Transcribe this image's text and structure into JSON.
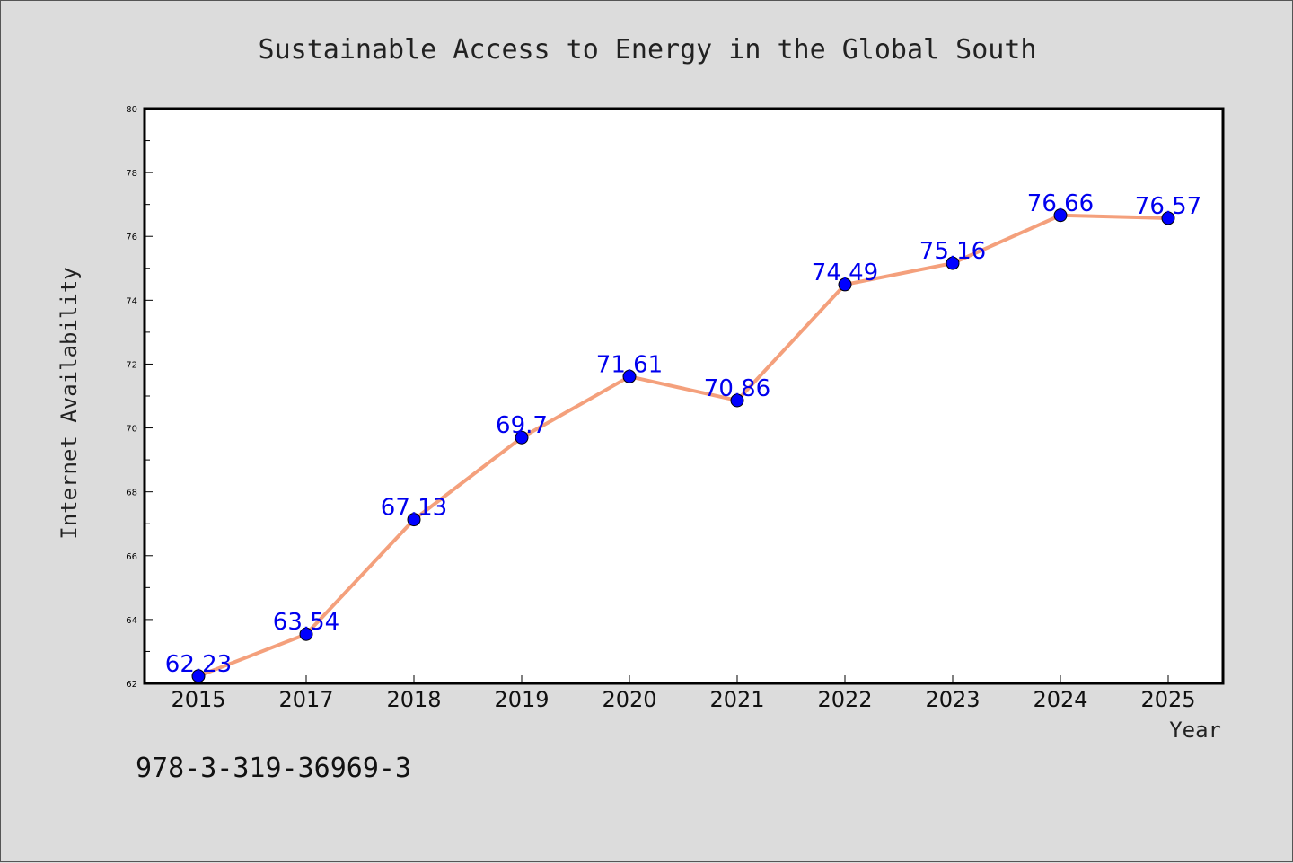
{
  "chart_data": {
    "type": "line",
    "title": "Sustainable Access to Energy in the Global South",
    "xlabel": "Year",
    "ylabel": "Internet Availability",
    "categories": [
      "2015",
      "2017",
      "2018",
      "2019",
      "2020",
      "2021",
      "2022",
      "2023",
      "2024",
      "2025"
    ],
    "values": [
      62.23,
      63.54,
      67.13,
      69.7,
      71.61,
      70.86,
      74.49,
      75.16,
      76.66,
      76.57
    ],
    "data_labels": [
      "62.23",
      "63.54",
      "67.13",
      "69.7",
      "71.61",
      "70.86",
      "74.49",
      "75.16",
      "76.66",
      "76.57"
    ],
    "ylim": [
      62,
      80
    ],
    "yticks": [
      "62",
      "64",
      "66",
      "68",
      "70",
      "72",
      "74",
      "76",
      "78",
      "80"
    ],
    "grid": false,
    "line_color": "#f4a07c",
    "marker_color": "#0000ff",
    "label_color": "#0000ee"
  },
  "footnote": "978-3-319-36969-3"
}
